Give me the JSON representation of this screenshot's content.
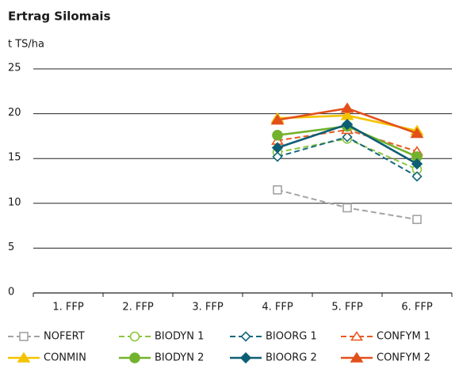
{
  "chart_data": {
    "type": "line",
    "title": "Ertrag Silomais",
    "y_label": "t TS/ha",
    "categories": [
      "1. FFP",
      "2. FFP",
      "3. FFP",
      "4. FFP",
      "5. FFP",
      "6. FFP"
    ],
    "ylim": [
      0,
      25
    ],
    "yticks": [
      0,
      5,
      10,
      15,
      20,
      25
    ],
    "grid": true,
    "series": [
      {
        "name": "NOFERT",
        "color": "#a3a3a3",
        "dashed": true,
        "marker": "square",
        "filled": false,
        "values": [
          null,
          null,
          null,
          11.5,
          9.5,
          8.2
        ]
      },
      {
        "name": "BIODYN 1",
        "color": "#8cc63e",
        "dashed": true,
        "marker": "circle",
        "filled": false,
        "values": [
          null,
          null,
          null,
          15.7,
          17.2,
          13.8
        ]
      },
      {
        "name": "BIOORG 1",
        "color": "#16687e",
        "dashed": true,
        "marker": "diamond",
        "filled": false,
        "values": [
          null,
          null,
          null,
          15.2,
          17.4,
          13.0
        ]
      },
      {
        "name": "CONFYM 1",
        "color": "#e8591f",
        "dashed": true,
        "marker": "triangle",
        "filled": false,
        "values": [
          null,
          null,
          null,
          17.0,
          18.2,
          15.8
        ]
      },
      {
        "name": "CONMIN",
        "color": "#f4c300",
        "dashed": false,
        "marker": "triangle",
        "filled": true,
        "values": [
          null,
          null,
          null,
          19.5,
          19.8,
          18.1
        ]
      },
      {
        "name": "BIODYN 2",
        "color": "#72b22d",
        "dashed": false,
        "marker": "circle",
        "filled": true,
        "values": [
          null,
          null,
          null,
          17.6,
          18.6,
          15.2
        ]
      },
      {
        "name": "BIOORG 2",
        "color": "#0d5e74",
        "dashed": false,
        "marker": "diamond",
        "filled": true,
        "values": [
          null,
          null,
          null,
          16.2,
          18.8,
          14.4
        ]
      },
      {
        "name": "CONFYM 2",
        "color": "#e2501a",
        "dashed": false,
        "marker": "triangle",
        "filled": true,
        "values": [
          null,
          null,
          null,
          19.3,
          20.6,
          17.8
        ]
      }
    ]
  }
}
